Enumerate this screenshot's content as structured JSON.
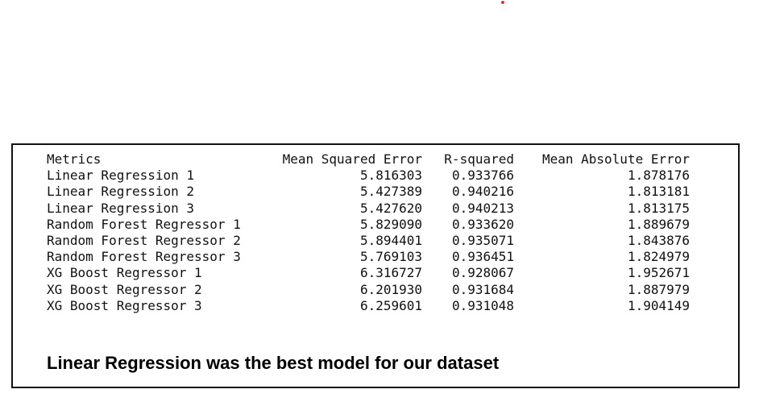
{
  "accent_dot_color": "#dd3333",
  "table": {
    "headers": [
      "Metrics",
      "Mean Squared Error",
      "R-squared",
      "Mean Absolute Error"
    ],
    "rows": [
      [
        "Linear Regression 1",
        "5.816303",
        "0.933766",
        "1.878176"
      ],
      [
        "Linear Regression 2",
        "5.427389",
        "0.940216",
        "1.813181"
      ],
      [
        "Linear Regression 3",
        "5.427620",
        "0.940213",
        "1.813175"
      ],
      [
        "Random Forest Regressor 1",
        "5.829090",
        "0.933620",
        "1.889679"
      ],
      [
        "Random Forest Regressor 2",
        "5.894401",
        "0.935071",
        "1.843876"
      ],
      [
        "Random Forest Regressor 3",
        "5.769103",
        "0.936451",
        "1.824979"
      ],
      [
        "XG Boost Regressor 1",
        "6.316727",
        "0.928067",
        "1.952671"
      ],
      [
        "XG Boost Regressor 2",
        "6.201930",
        "0.931684",
        "1.887979"
      ],
      [
        "XG Boost Regressor 3",
        "6.259601",
        "0.931048",
        "1.904149"
      ]
    ]
  },
  "conclusion": "Linear Regression was the best model for our dataset"
}
